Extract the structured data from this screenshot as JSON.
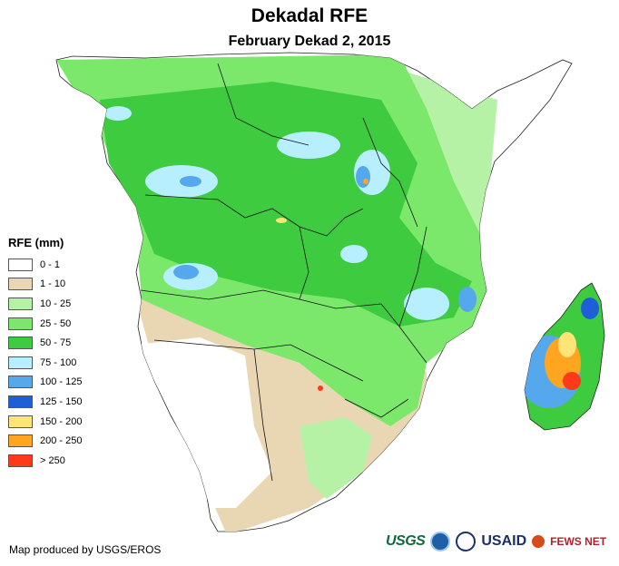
{
  "title": "Dekadal RFE",
  "subtitle": "February Dekad 2, 2015",
  "legend": {
    "title": "RFE (mm)",
    "items": [
      {
        "label": "0 - 1",
        "color": "#ffffff"
      },
      {
        "label": "1 - 10",
        "color": "#e9d7b4"
      },
      {
        "label": "10 - 25",
        "color": "#b6f2a6"
      },
      {
        "label": "25 - 50",
        "color": "#7be86b"
      },
      {
        "label": "50 - 75",
        "color": "#3fcb3f"
      },
      {
        "label": "75 - 100",
        "color": "#b8efff"
      },
      {
        "label": "100 - 125",
        "color": "#56a8ec"
      },
      {
        "label": "125 - 150",
        "color": "#1e5fd8"
      },
      {
        "label": "150 - 200",
        "color": "#ffe577"
      },
      {
        "label": "200 - 250",
        "color": "#ffa51f"
      },
      {
        "label": "> 250",
        "color": "#ff3a1a"
      }
    ]
  },
  "credit": "Map produced by USGS/EROS",
  "logos": {
    "usgs": "USGS",
    "usaid": "USAID",
    "fews": "FEWS NET"
  },
  "icons": [
    "noaa-seal-icon",
    "usaid-seal-icon",
    "fews-globe-icon"
  ]
}
